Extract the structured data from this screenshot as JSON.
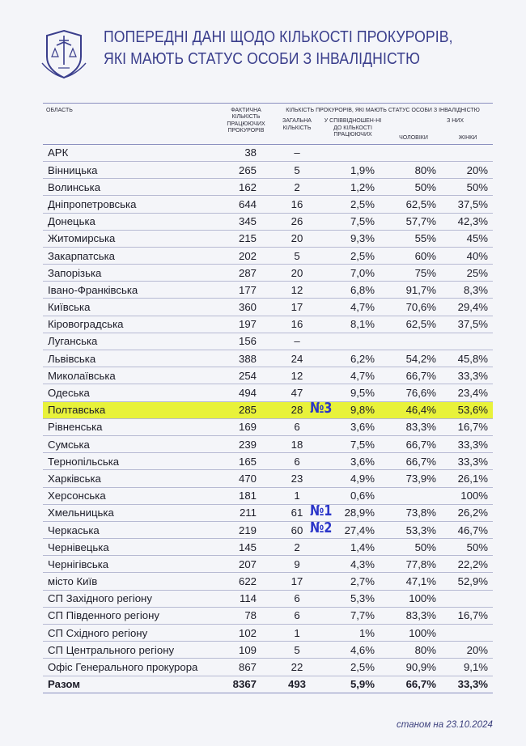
{
  "title": {
    "line1": "Попередні дані щодо кількості прокурорів,",
    "line2": "які мають статус особи з інвалідністю"
  },
  "colors": {
    "title": "#3a3e8c",
    "highlight": "#e8f23a",
    "rank": "#2b35c9"
  },
  "table": {
    "headers": {
      "area": "ОБЛАСТЬ",
      "fact": "ФАКТИЧНА КІЛЬКІСТЬ ПРАЦЮЮЧИХ ПРОКУРОРІВ",
      "group": "КІЛЬКІСТЬ ПРОКУРОРІВ, ЯКІ МАЮТЬ СТАТУС ОСОБИ З ІНВАЛІДНІСТЮ",
      "total": "ЗАГАЛЬНА КІЛЬКІСТЬ",
      "ratio": "У СПІВВІДНОШЕН-НІ ДО КІЛЬКОСТІ ПРАЦЮЮЧИХ",
      "of_them": "З НИХ",
      "men": "ЧОЛОВІКИ",
      "women": "ЖІНКИ"
    },
    "rows": [
      {
        "name": "АРК",
        "fact": "38",
        "total": "–",
        "ratio": "",
        "men": "",
        "women": ""
      },
      {
        "name": "Вінницька",
        "fact": "265",
        "total": "5",
        "ratio": "1,9%",
        "men": "80%",
        "women": "20%"
      },
      {
        "name": "Волинська",
        "fact": "162",
        "total": "2",
        "ratio": "1,2%",
        "men": "50%",
        "women": "50%"
      },
      {
        "name": "Дніпропетровська",
        "fact": "644",
        "total": "16",
        "ratio": "2,5%",
        "men": "62,5%",
        "women": "37,5%"
      },
      {
        "name": "Донецька",
        "fact": "345",
        "total": "26",
        "ratio": "7,5%",
        "men": "57,7%",
        "women": "42,3%"
      },
      {
        "name": "Житомирська",
        "fact": "215",
        "total": "20",
        "ratio": "9,3%",
        "men": "55%",
        "women": "45%"
      },
      {
        "name": "Закарпатська",
        "fact": "202",
        "total": "5",
        "ratio": "2,5%",
        "men": "60%",
        "women": "40%"
      },
      {
        "name": "Запорізька",
        "fact": "287",
        "total": "20",
        "ratio": "7,0%",
        "men": "75%",
        "women": "25%"
      },
      {
        "name": "Івано-Франківська",
        "fact": "177",
        "total": "12",
        "ratio": "6,8%",
        "men": "91,7%",
        "women": "8,3%"
      },
      {
        "name": "Київська",
        "fact": "360",
        "total": "17",
        "ratio": "4,7%",
        "men": "70,6%",
        "women": "29,4%"
      },
      {
        "name": "Кіровоградська",
        "fact": "197",
        "total": "16",
        "ratio": "8,1%",
        "men": "62,5%",
        "women": "37,5%"
      },
      {
        "name": "Луганська",
        "fact": "156",
        "total": "–",
        "ratio": "",
        "men": "",
        "women": ""
      },
      {
        "name": "Львівська",
        "fact": "388",
        "total": "24",
        "ratio": "6,2%",
        "men": "54,2%",
        "women": "45,8%"
      },
      {
        "name": "Миколаївська",
        "fact": "254",
        "total": "12",
        "ratio": "4,7%",
        "men": "66,7%",
        "women": "33,3%"
      },
      {
        "name": "Одеська",
        "fact": "494",
        "total": "47",
        "ratio": "9,5%",
        "men": "76,6%",
        "women": "23,4%"
      },
      {
        "name": "Полтавська",
        "fact": "285",
        "total": "28",
        "ratio": "9,8%",
        "men": "46,4%",
        "women": "53,6%",
        "rank": "№3",
        "highlight": true
      },
      {
        "name": "Рівненська",
        "fact": "169",
        "total": "6",
        "ratio": "3,6%",
        "men": "83,3%",
        "women": "16,7%"
      },
      {
        "name": "Сумська",
        "fact": "239",
        "total": "18",
        "ratio": "7,5%",
        "men": "66,7%",
        "women": "33,3%"
      },
      {
        "name": "Тернопільська",
        "fact": "165",
        "total": "6",
        "ratio": "3,6%",
        "men": "66,7%",
        "women": "33,3%"
      },
      {
        "name": "Харківська",
        "fact": "470",
        "total": "23",
        "ratio": "4,9%",
        "men": "73,9%",
        "women": "26,1%"
      },
      {
        "name": "Херсонська",
        "fact": "181",
        "total": "1",
        "ratio": "0,6%",
        "men": "",
        "women": "100%"
      },
      {
        "name": "Хмельницька",
        "fact": "211",
        "total": "61",
        "ratio": "28,9%",
        "men": "73,8%",
        "women": "26,2%",
        "rank": "№1"
      },
      {
        "name": "Черкаська",
        "fact": "219",
        "total": "60",
        "ratio": "27,4%",
        "men": "53,3%",
        "women": "46,7%",
        "rank": "№2"
      },
      {
        "name": "Чернівецька",
        "fact": "145",
        "total": "2",
        "ratio": "1,4%",
        "men": "50%",
        "women": "50%"
      },
      {
        "name": "Чернігівська",
        "fact": "207",
        "total": "9",
        "ratio": "4,3%",
        "men": "77,8%",
        "women": "22,2%"
      },
      {
        "name": "місто Київ",
        "fact": "622",
        "total": "17",
        "ratio": "2,7%",
        "men": "47,1%",
        "women": "52,9%"
      },
      {
        "name": "СП Західного регіону",
        "fact": "114",
        "total": "6",
        "ratio": "5,3%",
        "men": "100%",
        "women": ""
      },
      {
        "name": "СП Південного регіону",
        "fact": "78",
        "total": "6",
        "ratio": "7,7%",
        "men": "83,3%",
        "women": "16,7%"
      },
      {
        "name": "СП Східного регіону",
        "fact": "102",
        "total": "1",
        "ratio": "1%",
        "men": "100%",
        "women": ""
      },
      {
        "name": "СП Центрального регіону",
        "fact": "109",
        "total": "5",
        "ratio": "4,6%",
        "men": "80%",
        "women": "20%"
      },
      {
        "name": "Офіс Генерального прокурора",
        "fact": "867",
        "total": "22",
        "ratio": "2,5%",
        "men": "90,9%",
        "women": "9,1%"
      }
    ],
    "totals": {
      "name": "Разом",
      "fact": "8367",
      "total": "493",
      "ratio": "5,9%",
      "men": "66,7%",
      "women": "33,3%"
    }
  },
  "footer": {
    "date": "станом на 23.10.2024"
  }
}
